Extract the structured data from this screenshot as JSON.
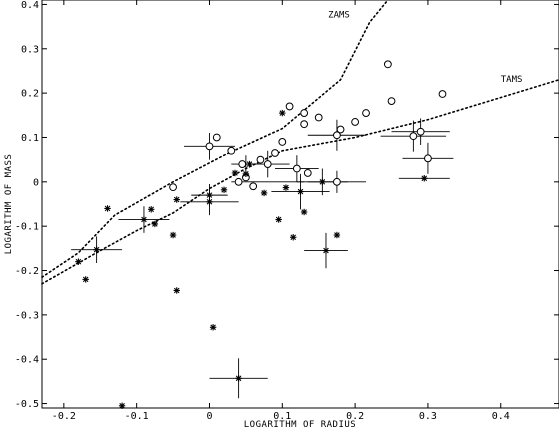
{
  "chart_data": {
    "type": "scatter",
    "title": "",
    "xlabel": "LOGARITHM OF RADIUS",
    "ylabel": "LOGARITHM OF MASS",
    "xlim": [
      -0.23,
      0.48
    ],
    "ylim": [
      -0.51,
      0.41
    ],
    "xticks": [
      -0.2,
      -0.1,
      0,
      0.1,
      0.2,
      0.3,
      0.4
    ],
    "xtick_labels": [
      "-0.2",
      "-0.1",
      "0",
      "0.1",
      "0.2",
      "0.3",
      "0.4"
    ],
    "yticks": [
      -0.5,
      -0.4,
      -0.3,
      -0.2,
      -0.1,
      0,
      0.1,
      0.2,
      0.3,
      0.4
    ],
    "ytick_labels": [
      "-0.5",
      "-0.4",
      "-0.3",
      "-0.2",
      "-0.1",
      "0",
      "0.1",
      "0.2",
      "0.3",
      "0.4"
    ],
    "grid": false,
    "curves": [
      {
        "label": "ZAMS",
        "style": "dotted",
        "label_at": [
          0.163,
          0.37
        ],
        "points": [
          [
            -0.23,
            -0.215
          ],
          [
            -0.18,
            -0.16
          ],
          [
            -0.13,
            -0.075
          ],
          [
            -0.05,
            0.0
          ],
          [
            0.02,
            0.06
          ],
          [
            0.1,
            0.12
          ],
          [
            0.18,
            0.23
          ],
          [
            0.22,
            0.36
          ],
          [
            0.245,
            0.41
          ]
        ]
      },
      {
        "label": "TAMS",
        "style": "dotted",
        "label_at": [
          0.4,
          0.225
        ],
        "points": [
          [
            -0.23,
            -0.23
          ],
          [
            -0.15,
            -0.155
          ],
          [
            -0.1,
            -0.11
          ],
          [
            -0.05,
            -0.07
          ],
          [
            0.0,
            -0.015
          ],
          [
            0.05,
            0.03
          ],
          [
            0.1,
            0.07
          ],
          [
            0.2,
            0.1
          ],
          [
            0.3,
            0.14
          ],
          [
            0.4,
            0.19
          ],
          [
            0.48,
            0.23
          ]
        ]
      }
    ],
    "series": [
      {
        "marker": "circle",
        "points": [
          {
            "x": -0.05,
            "y": -0.012
          },
          {
            "x": 0.0,
            "y": 0.08
          },
          {
            "x": 0.01,
            "y": 0.1
          },
          {
            "x": 0.03,
            "y": 0.07
          },
          {
            "x": 0.04,
            "y": 0.0
          },
          {
            "x": 0.045,
            "y": 0.04
          },
          {
            "x": 0.05,
            "y": 0.01
          },
          {
            "x": 0.06,
            "y": -0.01
          },
          {
            "x": 0.07,
            "y": 0.05
          },
          {
            "x": 0.08,
            "y": 0.04
          },
          {
            "x": 0.09,
            "y": 0.065
          },
          {
            "x": 0.1,
            "y": 0.09
          },
          {
            "x": 0.11,
            "y": 0.17
          },
          {
            "x": 0.12,
            "y": 0.03
          },
          {
            "x": 0.13,
            "y": 0.155
          },
          {
            "x": 0.13,
            "y": 0.13
          },
          {
            "x": 0.135,
            "y": 0.02
          },
          {
            "x": 0.15,
            "y": 0.145
          },
          {
            "x": 0.175,
            "y": 0.105
          },
          {
            "x": 0.18,
            "y": 0.118
          },
          {
            "x": 0.175,
            "y": 0.0
          },
          {
            "x": 0.2,
            "y": 0.135
          },
          {
            "x": 0.215,
            "y": 0.155
          },
          {
            "x": 0.245,
            "y": 0.265
          },
          {
            "x": 0.25,
            "y": 0.182
          },
          {
            "x": 0.28,
            "y": 0.103
          },
          {
            "x": 0.29,
            "y": 0.113
          },
          {
            "x": 0.3,
            "y": 0.053
          },
          {
            "x": 0.32,
            "y": 0.198
          }
        ]
      },
      {
        "marker": "asterisk",
        "points": [
          {
            "x": -0.18,
            "y": -0.18
          },
          {
            "x": -0.17,
            "y": -0.22
          },
          {
            "x": -0.155,
            "y": -0.153
          },
          {
            "x": -0.14,
            "y": -0.06
          },
          {
            "x": -0.09,
            "y": -0.085
          },
          {
            "x": -0.08,
            "y": -0.062
          },
          {
            "x": -0.075,
            "y": -0.095
          },
          {
            "x": -0.12,
            "y": -0.505
          },
          {
            "x": -0.05,
            "y": -0.12
          },
          {
            "x": -0.045,
            "y": -0.04
          },
          {
            "x": -0.045,
            "y": -0.245
          },
          {
            "x": 0.0,
            "y": -0.03
          },
          {
            "x": 0.0,
            "y": -0.045
          },
          {
            "x": 0.005,
            "y": -0.328
          },
          {
            "x": 0.02,
            "y": -0.018
          },
          {
            "x": 0.035,
            "y": 0.02
          },
          {
            "x": 0.04,
            "y": -0.443
          },
          {
            "x": 0.05,
            "y": 0.018
          },
          {
            "x": 0.055,
            "y": 0.04
          },
          {
            "x": 0.075,
            "y": -0.025
          },
          {
            "x": 0.095,
            "y": -0.085
          },
          {
            "x": 0.1,
            "y": 0.155
          },
          {
            "x": 0.105,
            "y": -0.013
          },
          {
            "x": 0.115,
            "y": -0.125
          },
          {
            "x": 0.125,
            "y": -0.022
          },
          {
            "x": 0.13,
            "y": -0.068
          },
          {
            "x": 0.155,
            "y": 0.0
          },
          {
            "x": 0.16,
            "y": -0.155
          },
          {
            "x": 0.175,
            "y": -0.12
          },
          {
            "x": 0.295,
            "y": 0.008
          }
        ]
      }
    ],
    "error_bars": [
      {
        "x": -0.155,
        "y": -0.153,
        "xerr": 0.035,
        "yerr": 0.03
      },
      {
        "x": -0.09,
        "y": -0.085,
        "xerr": 0.035,
        "yerr": 0.03
      },
      {
        "x": 0.0,
        "y": 0.08,
        "xerr": 0.035,
        "yerr": 0.03
      },
      {
        "x": 0.0,
        "y": -0.045,
        "xerr": 0.04,
        "yerr": 0.03
      },
      {
        "x": 0.0,
        "y": -0.03,
        "xerr": 0.025,
        "yerr": 0.025
      },
      {
        "x": 0.04,
        "y": -0.443,
        "xerr": 0.04,
        "yerr": 0.045
      },
      {
        "x": 0.05,
        "y": 0.04,
        "xerr": 0.02,
        "yerr": 0.02
      },
      {
        "x": 0.08,
        "y": 0.04,
        "xerr": 0.03,
        "yerr": 0.03
      },
      {
        "x": 0.08,
        "y": 0.0,
        "xerr": 0.05,
        "yerr": 0.0
      },
      {
        "x": 0.12,
        "y": 0.03,
        "xerr": 0.03,
        "yerr": 0.03
      },
      {
        "x": 0.125,
        "y": -0.022,
        "xerr": 0.04,
        "yerr": 0.04
      },
      {
        "x": 0.155,
        "y": 0.0,
        "xerr": 0.035,
        "yerr": 0.03
      },
      {
        "x": 0.16,
        "y": -0.155,
        "xerr": 0.03,
        "yerr": 0.04
      },
      {
        "x": 0.175,
        "y": 0.105,
        "xerr": 0.04,
        "yerr": 0.035
      },
      {
        "x": 0.175,
        "y": 0.0,
        "xerr": 0.04,
        "yerr": 0.025
      },
      {
        "x": 0.28,
        "y": 0.103,
        "xerr": 0.045,
        "yerr": 0.035
      },
      {
        "x": 0.29,
        "y": 0.113,
        "xerr": 0.04,
        "yerr": 0.03
      },
      {
        "x": 0.3,
        "y": 0.053,
        "xerr": 0.035,
        "yerr": 0.035
      },
      {
        "x": 0.295,
        "y": 0.008,
        "xerr": 0.035,
        "yerr": 0.0
      }
    ]
  }
}
